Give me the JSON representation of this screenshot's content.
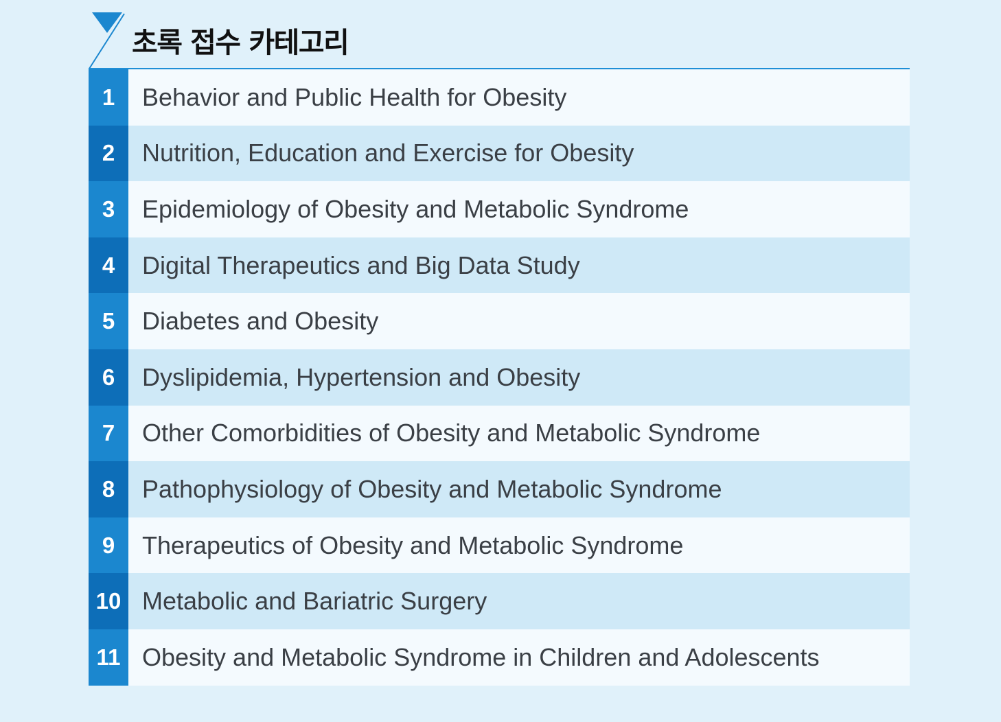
{
  "title": "초록 접수 카테고리",
  "colors": {
    "accent": "#1b87cf",
    "accent_dark": "#0d6eb8",
    "row_light": "#f4fafe",
    "row_alt": "#cfe9f7",
    "background": "#e0f1fa"
  },
  "categories": [
    {
      "num": "1",
      "label": "Behavior and Public Health for Obesity"
    },
    {
      "num": "2",
      "label": "Nutrition, Education and Exercise for Obesity"
    },
    {
      "num": "3",
      "label": "Epidemiology of Obesity and Metabolic Syndrome"
    },
    {
      "num": "4",
      "label": "Digital Therapeutics and Big Data Study"
    },
    {
      "num": "5",
      "label": "Diabetes and Obesity"
    },
    {
      "num": "6",
      "label": "Dyslipidemia, Hypertension and Obesity"
    },
    {
      "num": "7",
      "label": "Other Comorbidities of Obesity and Metabolic Syndrome"
    },
    {
      "num": "8",
      "label": "Pathophysiology of Obesity and Metabolic Syndrome"
    },
    {
      "num": "9",
      "label": "Therapeutics of Obesity and Metabolic Syndrome"
    },
    {
      "num": "10",
      "label": "Metabolic and Bariatric Surgery"
    },
    {
      "num": "11",
      "label": "Obesity and Metabolic Syndrome in Children and Adolescents"
    }
  ]
}
